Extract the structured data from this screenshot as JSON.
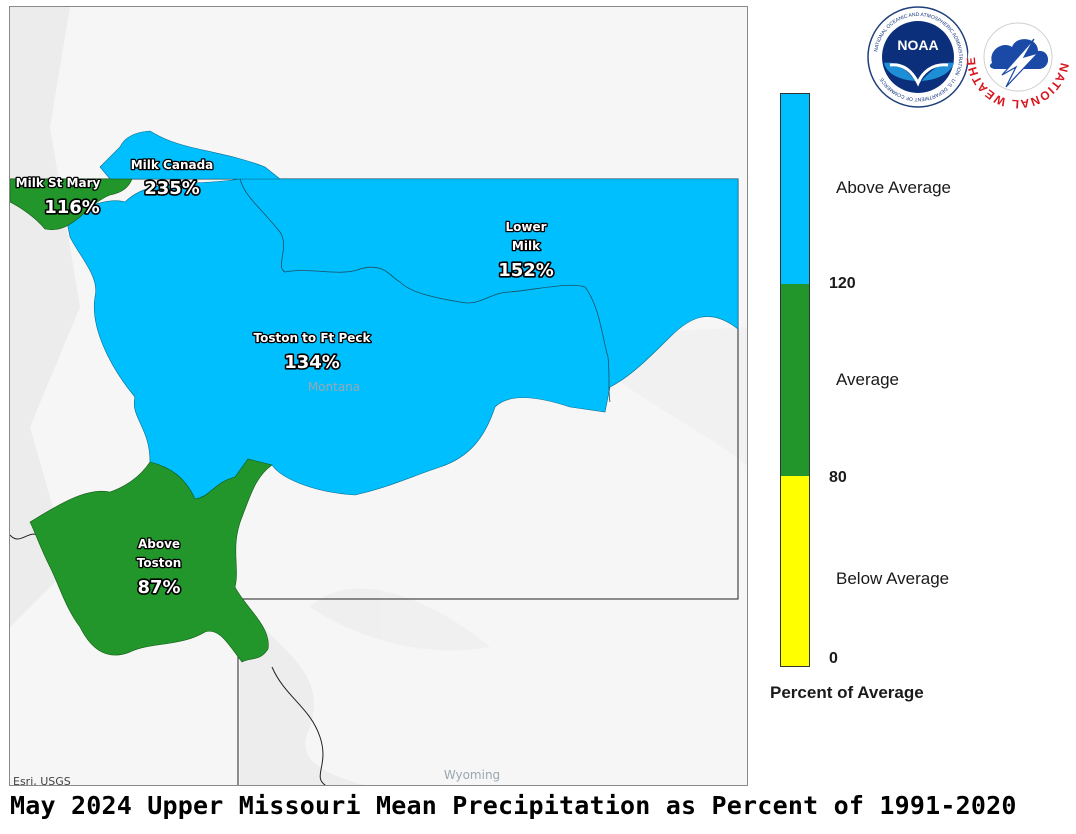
{
  "title": "May 2024 Upper Missouri Mean Precipitation as Percent of 1991-2020",
  "map": {
    "attribution": "Esri, USGS",
    "places": {
      "montana": "Montana",
      "wyoming": "Wyoming"
    },
    "basins": [
      {
        "id": "milk-st-mary",
        "name": "Milk St Mary",
        "percent": "116%",
        "category": "Average",
        "color": "#22962a"
      },
      {
        "id": "milk-canada",
        "name": "Milk Canada",
        "percent": "235%",
        "category": "Above Average",
        "color": "#00bfff"
      },
      {
        "id": "lower-milk",
        "name_lines": [
          "Lower",
          "Milk"
        ],
        "percent": "152%",
        "category": "Above Average",
        "color": "#00bfff"
      },
      {
        "id": "toston-ft-peck",
        "name": "Toston to Ft Peck",
        "percent": "134%",
        "category": "Above Average",
        "color": "#00bfff"
      },
      {
        "id": "above-toston",
        "name_lines": [
          "Above",
          "Toston"
        ],
        "percent": "87%",
        "category": "Average",
        "color": "#22962a"
      }
    ]
  },
  "legend": {
    "title": "Percent of Average",
    "categories": [
      {
        "label": "Above Average",
        "color": "#00bfff"
      },
      {
        "label": "Average",
        "color": "#22962a"
      },
      {
        "label": "Below Average",
        "color": "#ffff00"
      }
    ],
    "ticks": [
      "120",
      "80",
      "0"
    ]
  },
  "logos": {
    "noaa": {
      "text": "NOAA",
      "ring_text": "NATIONAL OCEANIC AND ATMOSPHERIC ADMINISTRATION · U.S. DEPARTMENT OF COMMERCE"
    },
    "nws": {
      "ring_text": "NATIONAL WEATHER SERVICE"
    }
  }
}
